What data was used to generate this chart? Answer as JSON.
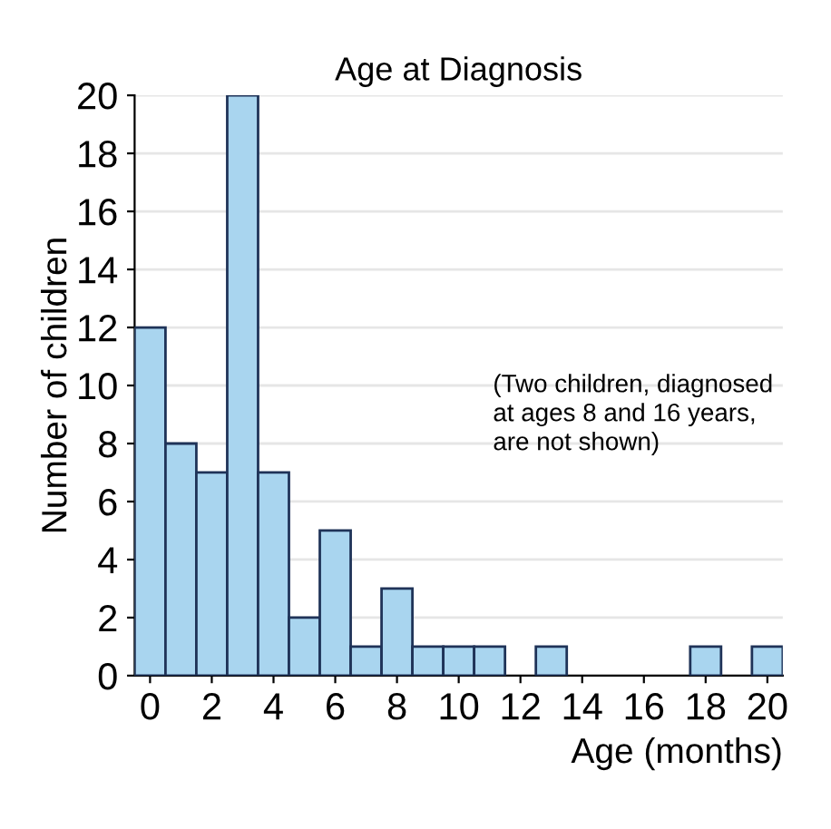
{
  "chart_data": {
    "type": "histogram",
    "title": "Age at Diagnosis",
    "xlabel": "Age (months)",
    "ylabel": "Number of children",
    "bins": [
      -0.5,
      0.5,
      1.5,
      2.5,
      3.5,
      4.5,
      5.5,
      6.5,
      7.5,
      8.5,
      9.5,
      10.5,
      11.5,
      12.5,
      13.5,
      14.5,
      15.5,
      16.5,
      17.5,
      18.5,
      19.5,
      20.5
    ],
    "values": [
      12,
      8,
      7,
      20,
      7,
      2,
      5,
      1,
      3,
      1,
      1,
      1,
      0,
      1,
      0,
      0,
      0,
      0,
      1,
      0,
      1
    ],
    "color": "#a9d5ef",
    "xlim": [
      -0.5,
      20.5
    ],
    "xticks": [
      0,
      2,
      4,
      6,
      8,
      10,
      12,
      14,
      16,
      18,
      20
    ],
    "ylim": [
      0,
      20
    ],
    "yticks": [
      0,
      2,
      4,
      6,
      8,
      10,
      12,
      14,
      16,
      18,
      20
    ],
    "grid": "y",
    "annotations": [
      "(Two children, diagnosed\nat ages 8 and 16 years,\nare not shown)"
    ]
  }
}
